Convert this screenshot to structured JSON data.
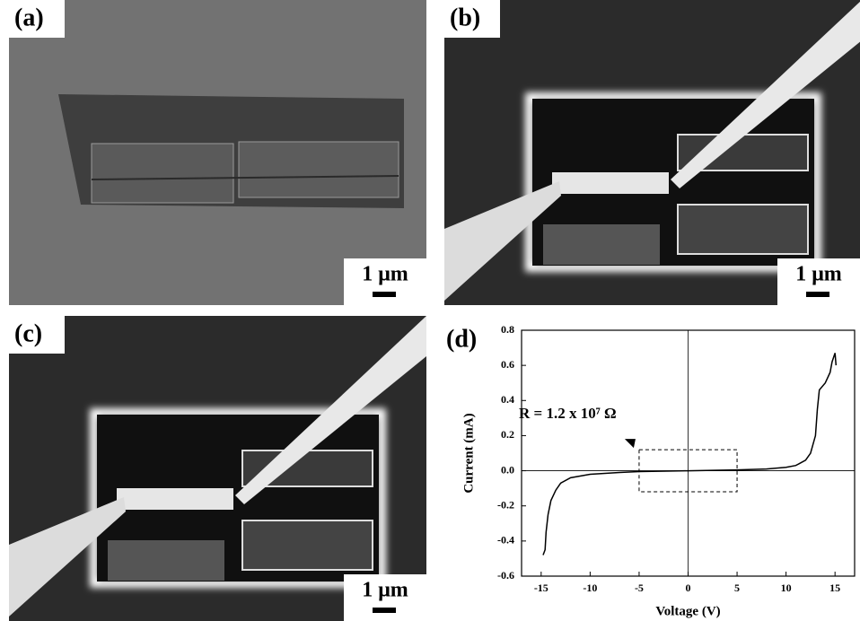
{
  "panels": [
    {
      "label": "(a)",
      "scale_label": "1 μm"
    },
    {
      "label": "(b)",
      "scale_label": "1 μm"
    },
    {
      "label": "(c)",
      "scale_label": "1 μm"
    }
  ],
  "chart_data": {
    "type": "line",
    "panel_label": "(d)",
    "x_label": "Voltage (V)",
    "y_label": "Current (mA)",
    "annotation": "R = 1.2 x 10⁷ Ω",
    "annotation_box": {
      "x": [
        -5,
        5
      ],
      "y": [
        -0.12,
        0.12
      ]
    },
    "x": [
      -14.8,
      -14.6,
      -14.5,
      -14.3,
      -14,
      -13.5,
      -13,
      -12,
      -10,
      -7,
      -5,
      0,
      5,
      8,
      10,
      11,
      12,
      12.5,
      13,
      13.2,
      13.4,
      14,
      14.5,
      14.7,
      15,
      15.1
    ],
    "values": [
      -0.48,
      -0.45,
      -0.35,
      -0.25,
      -0.17,
      -0.11,
      -0.07,
      -0.04,
      -0.02,
      -0.01,
      -0.005,
      0,
      0.005,
      0.01,
      0.02,
      0.03,
      0.06,
      0.1,
      0.2,
      0.35,
      0.46,
      0.5,
      0.56,
      0.62,
      0.67,
      0.6
    ],
    "color": "#000000",
    "xlim": [
      -17,
      17
    ],
    "xticks": [
      -15,
      -10,
      -5,
      0,
      5,
      10,
      15
    ],
    "ylim": [
      -0.6,
      0.8
    ],
    "yticks": [
      {
        "value": -0.6,
        "label": "-0.6"
      },
      {
        "value": -0.4,
        "label": "-0.4"
      },
      {
        "value": -0.2,
        "label": "-0.2"
      },
      {
        "value": 0,
        "label": "0.0"
      },
      {
        "value": 0.2,
        "label": "0.2"
      },
      {
        "value": 0.4,
        "label": "0.4"
      },
      {
        "value": 0.6,
        "label": "0.6"
      },
      {
        "value": 0.8,
        "label": "0.8"
      }
    ]
  }
}
